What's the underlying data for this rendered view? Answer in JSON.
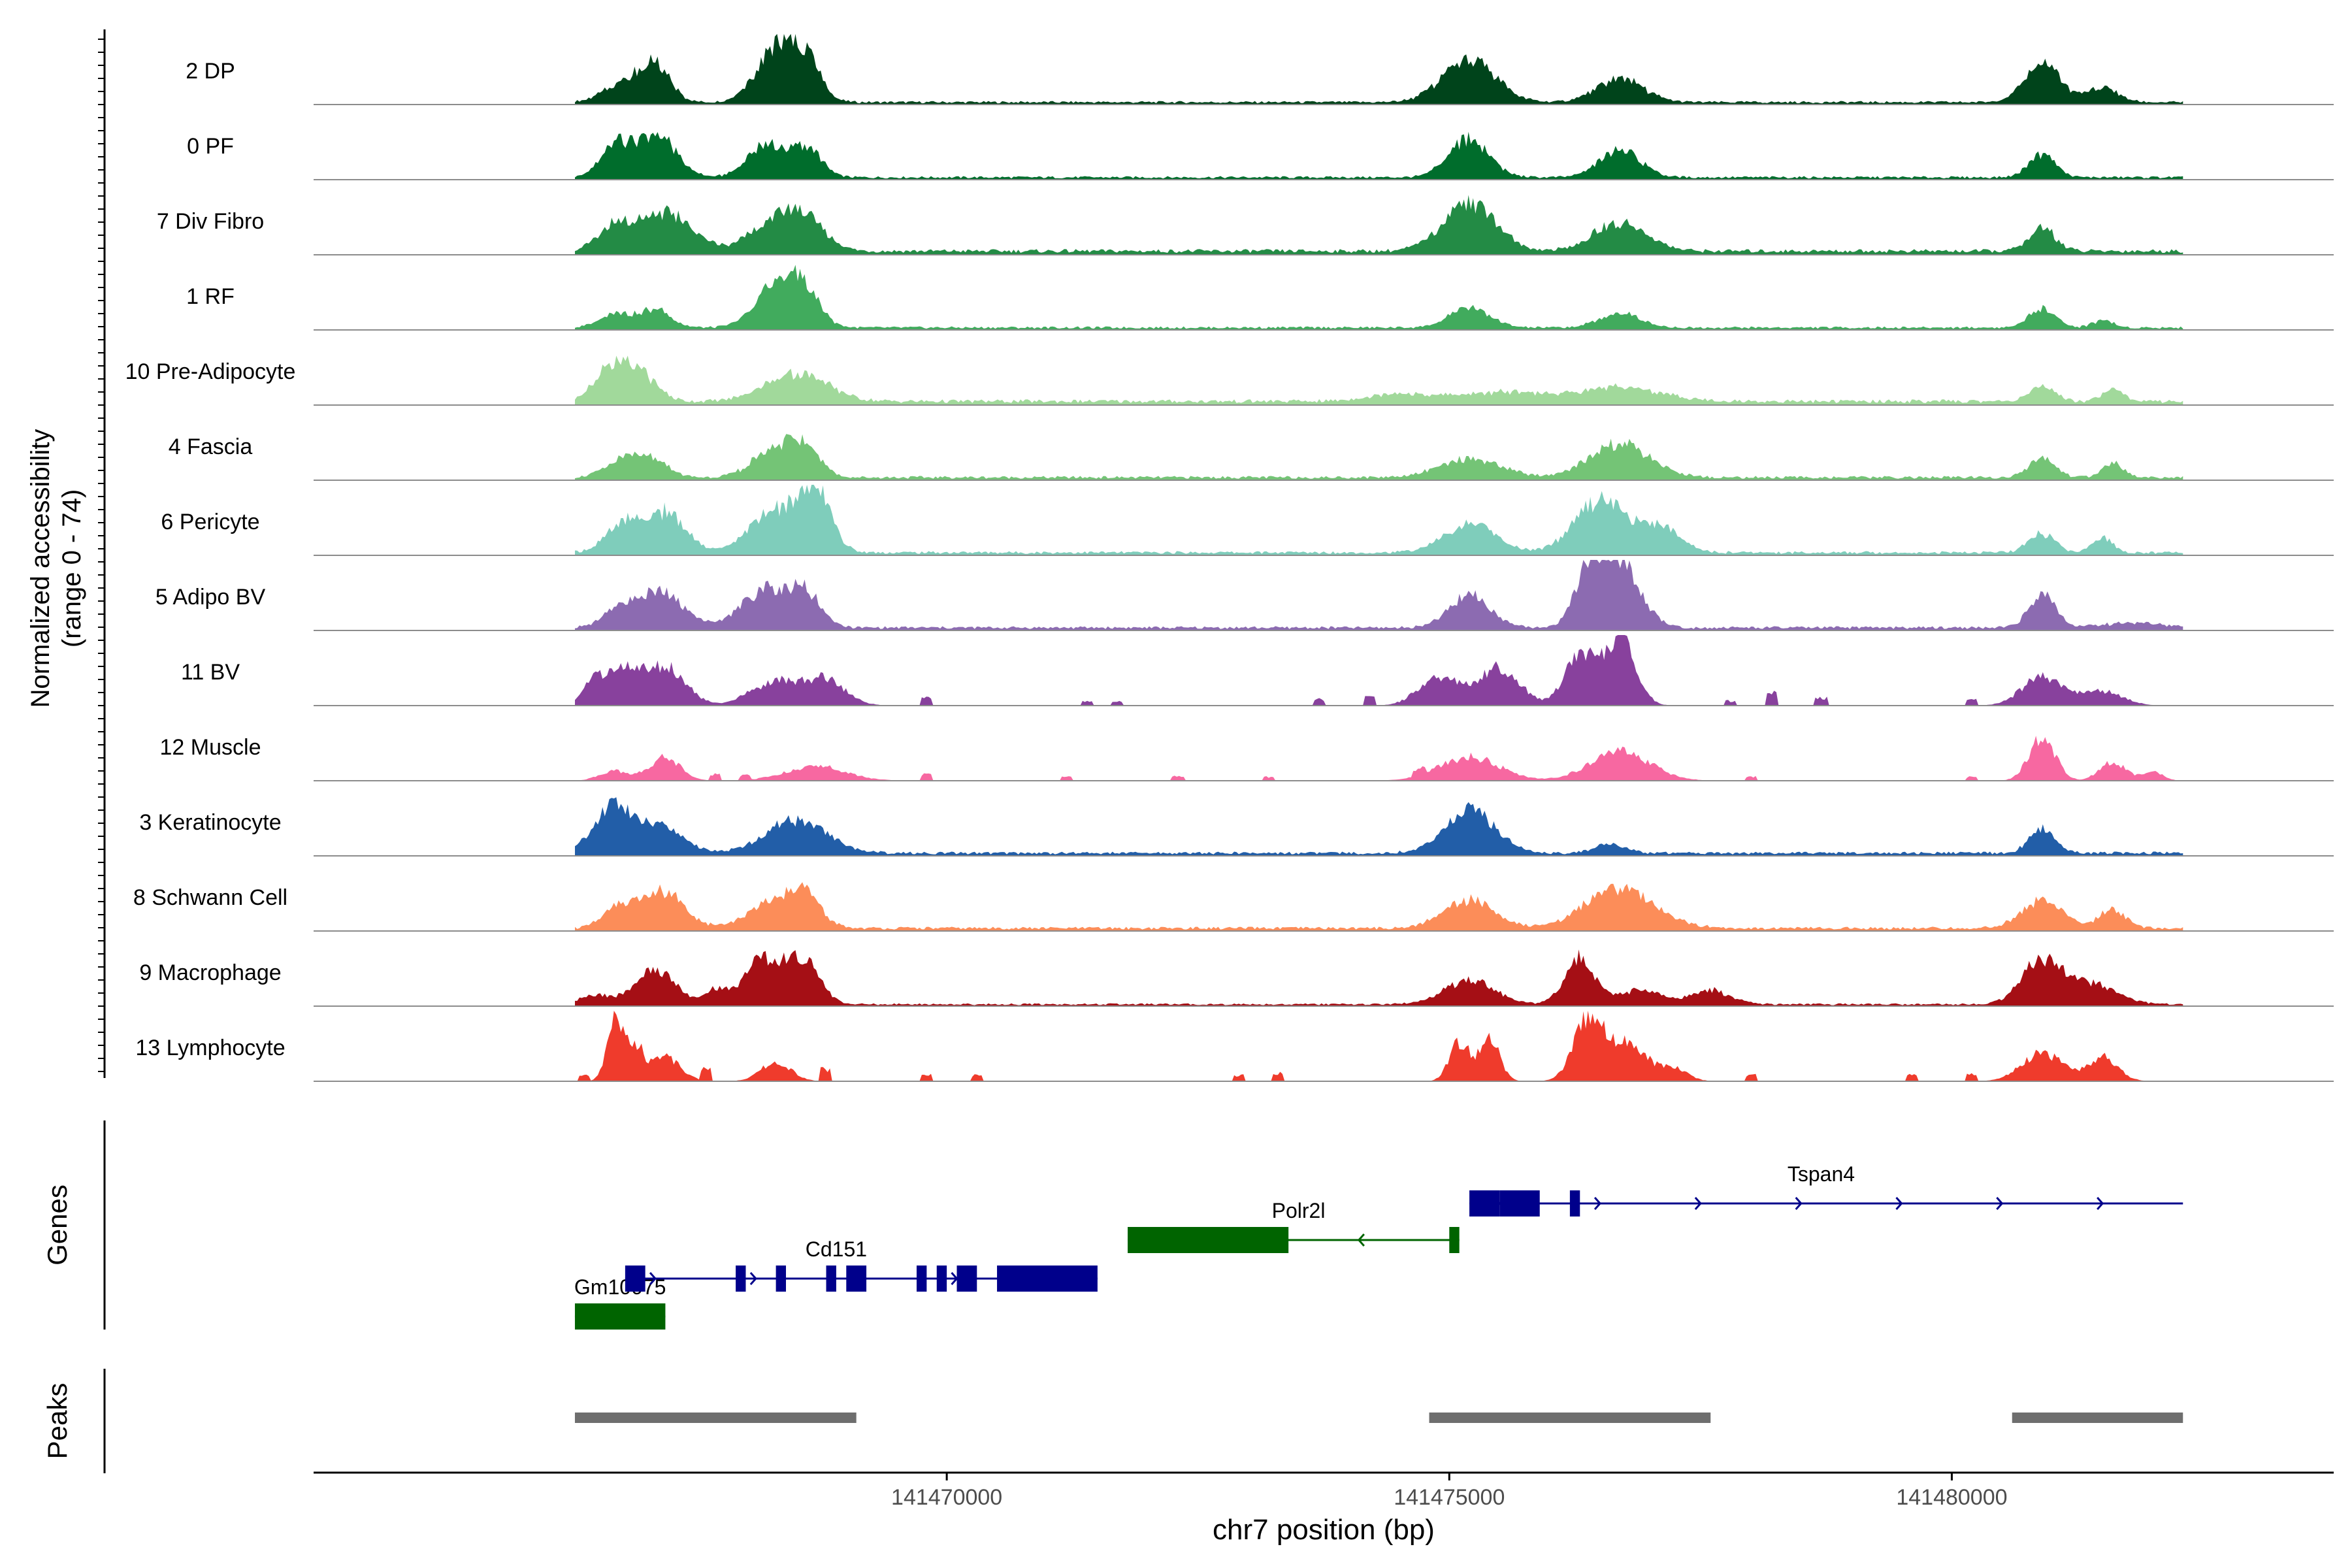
{
  "chart_data": {
    "type": "area",
    "title": "",
    "region": "chr7:141466300-141482300",
    "xlabel": "chr7 position (bp)",
    "ylabel": "Normalized accessibility",
    "ylabel_range": "(range 0 - 74)",
    "ylim": [
      0,
      74
    ],
    "xlim": [
      141463700,
      141483800
    ],
    "x_ticks": [
      141470000,
      141475000,
      141480000
    ],
    "x_tick_labels": [
      "141470000",
      "141475000",
      "141480000"
    ],
    "track_start": 141466300,
    "track_end": 141482300,
    "series": [
      {
        "name": "2 DP",
        "color": "#00441b",
        "peaks": [
          [
            141466800,
            200,
            20
          ],
          [
            141467100,
            150,
            35
          ],
          [
            141468300,
            200,
            55
          ],
          [
            141468600,
            150,
            38
          ],
          [
            141475200,
            260,
            45
          ],
          [
            141476700,
            230,
            25
          ],
          [
            141480900,
            180,
            40
          ],
          [
            141481500,
            150,
            15
          ]
        ],
        "bg": 2.5,
        "extra": []
      },
      {
        "name": "0 PF",
        "color": "#006d2c",
        "peaks": [
          [
            141466700,
            150,
            30
          ],
          [
            141467100,
            200,
            45
          ],
          [
            141468200,
            180,
            35
          ],
          [
            141468600,
            150,
            30
          ],
          [
            141475200,
            200,
            40
          ],
          [
            141476700,
            200,
            30
          ],
          [
            141480900,
            130,
            25
          ]
        ],
        "bg": 2.5,
        "extra": []
      },
      {
        "name": "7 Div Fibro",
        "color": "#238b45",
        "peaks": [
          [
            141466700,
            180,
            25
          ],
          [
            141467200,
            250,
            40
          ],
          [
            141468300,
            250,
            30
          ],
          [
            141468600,
            200,
            25
          ],
          [
            141475200,
            260,
            50
          ],
          [
            141476700,
            260,
            30
          ],
          [
            141480900,
            130,
            25
          ]
        ],
        "bg": 4,
        "extra": []
      },
      {
        "name": "1 RF",
        "color": "#41ab5d",
        "peaks": [
          [
            141466700,
            150,
            15
          ],
          [
            141467100,
            150,
            20
          ],
          [
            141468300,
            200,
            45
          ],
          [
            141468600,
            150,
            35
          ],
          [
            141475200,
            200,
            20
          ],
          [
            141476700,
            200,
            15
          ],
          [
            141480900,
            130,
            20
          ],
          [
            141481500,
            100,
            8
          ]
        ],
        "bg": 2.5,
        "extra": []
      },
      {
        "name": "10 Pre-Adipocyte",
        "color": "#a1d99b",
        "peaks": [
          [
            141466700,
            180,
            40
          ],
          [
            141467000,
            150,
            20
          ],
          [
            141468500,
            300,
            30
          ],
          [
            141474500,
            300,
            8
          ],
          [
            141475500,
            400,
            10
          ],
          [
            141476700,
            400,
            15
          ],
          [
            141480900,
            130,
            15
          ],
          [
            141481600,
            100,
            15
          ]
        ],
        "bg": 4,
        "extra": []
      },
      {
        "name": "4 Fascia",
        "color": "#74c476",
        "peaks": [
          [
            141466800,
            180,
            20
          ],
          [
            141467100,
            150,
            15
          ],
          [
            141468300,
            220,
            30
          ],
          [
            141468600,
            150,
            25
          ],
          [
            141475200,
            300,
            20
          ],
          [
            141476700,
            300,
            35
          ],
          [
            141480900,
            130,
            20
          ],
          [
            141481600,
            100,
            15
          ]
        ],
        "bg": 3,
        "extra": []
      },
      {
        "name": "6 Pericyte",
        "color": "#7fcdbb",
        "peaks": [
          [
            141466800,
            180,
            30
          ],
          [
            141467200,
            200,
            40
          ],
          [
            141468300,
            250,
            45
          ],
          [
            141468700,
            150,
            60
          ],
          [
            141475200,
            250,
            30
          ],
          [
            141476500,
            250,
            55
          ],
          [
            141477100,
            200,
            25
          ],
          [
            141480900,
            130,
            20
          ],
          [
            141481500,
            100,
            15
          ]
        ],
        "bg": 3,
        "extra": []
      },
      {
        "name": "5 Adipo BV",
        "color": "#8c6bb1",
        "peaks": [
          [
            141466800,
            180,
            25
          ],
          [
            141467200,
            200,
            35
          ],
          [
            141468200,
            250,
            40
          ],
          [
            141468600,
            150,
            30
          ],
          [
            141475200,
            200,
            35
          ],
          [
            141476400,
            150,
            55
          ],
          [
            141476700,
            200,
            65
          ],
          [
            141480900,
            130,
            35
          ],
          [
            141481800,
            300,
            5
          ]
        ],
        "bg": 3,
        "extra": []
      },
      {
        "name": "11 BV",
        "color": "#88419d",
        "peaks": [
          [
            141466500,
            120,
            25
          ],
          [
            141466800,
            150,
            35
          ],
          [
            141467200,
            200,
            40
          ],
          [
            141468300,
            250,
            25
          ],
          [
            141468800,
            200,
            25
          ],
          [
            141474900,
            200,
            30
          ],
          [
            141475500,
            200,
            40
          ],
          [
            141476300,
            150,
            55
          ],
          [
            141476700,
            150,
            75
          ],
          [
            141480900,
            200,
            30
          ],
          [
            141481500,
            200,
            15
          ]
        ],
        "bg": 0,
        "extra": [
          [
            141469800,
            10
          ],
          [
            141471400,
            5
          ],
          [
            141471700,
            5
          ],
          [
            141473700,
            8
          ],
          [
            141474200,
            12
          ],
          [
            141477800,
            6
          ],
          [
            141478200,
            18
          ],
          [
            141478700,
            10
          ],
          [
            141480200,
            8
          ]
        ]
      },
      {
        "name": "12 Muscle",
        "color": "#f768a1",
        "peaks": [
          [
            141466700,
            150,
            10
          ],
          [
            141467200,
            150,
            25
          ],
          [
            141468700,
            300,
            15
          ],
          [
            141475200,
            300,
            25
          ],
          [
            141476700,
            300,
            30
          ],
          [
            141480900,
            130,
            45
          ],
          [
            141481600,
            130,
            20
          ],
          [
            141482000,
            100,
            10
          ]
        ],
        "bg": 0,
        "extra": [
          [
            141467700,
            8
          ],
          [
            141468000,
            6
          ],
          [
            141469800,
            8
          ],
          [
            141471200,
            5
          ],
          [
            141472300,
            6
          ],
          [
            141473200,
            5
          ],
          [
            141474700,
            8
          ],
          [
            141478000,
            5
          ],
          [
            141480200,
            5
          ]
        ]
      },
      {
        "name": "3 Keratinocyte",
        "color": "#225ea8",
        "peaks": [
          [
            141466700,
            200,
            50
          ],
          [
            141467200,
            200,
            25
          ],
          [
            141468500,
            300,
            35
          ],
          [
            141475200,
            250,
            45
          ],
          [
            141476600,
            150,
            10
          ],
          [
            141480900,
            130,
            25
          ]
        ],
        "bg": 3,
        "extra": []
      },
      {
        "name": "8 Schwann Cell",
        "color": "#fc8d59",
        "peaks": [
          [
            141466800,
            180,
            25
          ],
          [
            141467200,
            200,
            35
          ],
          [
            141468300,
            250,
            30
          ],
          [
            141468600,
            150,
            25
          ],
          [
            141475200,
            250,
            30
          ],
          [
            141476700,
            350,
            40
          ],
          [
            141480900,
            200,
            30
          ],
          [
            141481600,
            130,
            20
          ]
        ],
        "bg": 3,
        "extra": []
      },
      {
        "name": "9 Macrophage",
        "color": "#a50f15",
        "peaks": [
          [
            141466500,
            150,
            10
          ],
          [
            141467100,
            200,
            35
          ],
          [
            141467700,
            100,
            15
          ],
          [
            141468200,
            200,
            50
          ],
          [
            141468600,
            150,
            40
          ],
          [
            141475200,
            250,
            25
          ],
          [
            141476300,
            150,
            50
          ],
          [
            141476900,
            200,
            15
          ],
          [
            141477600,
            200,
            15
          ],
          [
            141480900,
            200,
            45
          ],
          [
            141481400,
            250,
            20
          ]
        ],
        "bg": 2,
        "extra": []
      },
      {
        "name": "13 Lymphocyte",
        "color": "#ef3b2c",
        "peaks": [
          [
            141466700,
            80,
            70
          ],
          [
            141466900,
            80,
            35
          ],
          [
            141467200,
            150,
            25
          ],
          [
            141468300,
            150,
            20
          ],
          [
            141475100,
            100,
            40
          ],
          [
            141475400,
            100,
            45
          ],
          [
            141476400,
            150,
            70
          ],
          [
            141476800,
            150,
            40
          ],
          [
            141477200,
            150,
            15
          ],
          [
            141480900,
            200,
            30
          ],
          [
            141481500,
            150,
            25
          ]
        ],
        "bg": 0,
        "extra": [
          [
            141466400,
            8
          ],
          [
            141467600,
            15
          ],
          [
            141468800,
            15
          ],
          [
            141469800,
            8
          ],
          [
            141470300,
            8
          ],
          [
            141472900,
            8
          ],
          [
            141473300,
            10
          ],
          [
            141478000,
            8
          ],
          [
            141479600,
            8
          ],
          [
            141480200,
            10
          ]
        ]
      }
    ],
    "genes": [
      {
        "name": "Gm10075",
        "label": "Gm10075",
        "strand": "-",
        "color": "#006400",
        "start": 141466300,
        "end": 141467200,
        "exons": [
          [
            141466300,
            141467200
          ]
        ],
        "row": 3
      },
      {
        "name": "Cd151",
        "label": "Cd151",
        "strand": "+",
        "color": "#00008b",
        "start": 141466800,
        "end": 141471500,
        "exons": [
          [
            141466800,
            141467000
          ],
          [
            141467900,
            141468000
          ],
          [
            141468300,
            141468400
          ],
          [
            141468800,
            141468900
          ],
          [
            141469000,
            141469200
          ],
          [
            141469700,
            141469800
          ],
          [
            141469900,
            141470000
          ],
          [
            141470100,
            141470300
          ],
          [
            141470500,
            141471500
          ]
        ],
        "row": 2
      },
      {
        "name": "Polr2l",
        "label": "Polr2l",
        "strand": "-",
        "color": "#006400",
        "start": 141471800,
        "end": 141475100,
        "exons": [
          [
            141471800,
            141473400
          ],
          [
            141475000,
            141475100
          ]
        ],
        "row": 1
      },
      {
        "name": "Tspan4",
        "label": "Tspan4",
        "strand": "+",
        "color": "#00008b",
        "start": 141475200,
        "end": 141482300,
        "exons": [
          [
            141475200,
            141475500
          ],
          [
            141475500,
            141475900
          ],
          [
            141476200,
            141476300
          ]
        ],
        "row": 0
      }
    ],
    "peak_regions": [
      [
        141466300,
        141469100
      ],
      [
        141474800,
        141477600
      ],
      [
        141480600,
        141482300
      ]
    ],
    "track_labels": {
      "genes": "Genes",
      "peaks": "Peaks"
    }
  }
}
